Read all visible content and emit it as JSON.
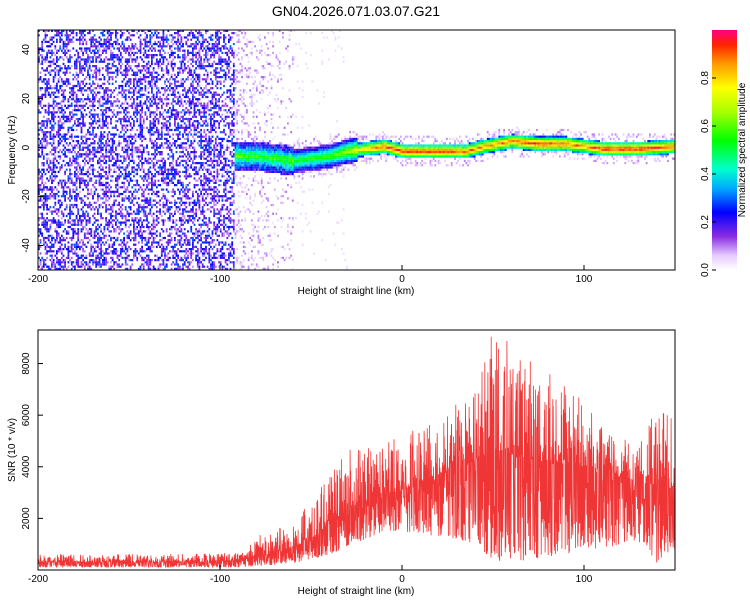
{
  "figure_title": "GN04.2026.071.03.07.G21",
  "chart_data": [
    {
      "type": "heatmap",
      "title": "GN04.2026.071.03.07.G21",
      "xlabel": "Height of straight line (km)",
      "ylabel": "Frequency (Hz)",
      "xlim": [
        -200,
        150
      ],
      "ylim": [
        -50,
        48
      ],
      "x_ticks": [
        -200,
        -100,
        0,
        100
      ],
      "y_ticks": [
        -40,
        -20,
        0,
        20,
        40
      ],
      "x_tick_labels": [
        "-200",
        "-100",
        "0",
        "100"
      ],
      "y_tick_labels": [
        "-40",
        "-20",
        "0",
        "20",
        "40"
      ],
      "colorbar": {
        "label": "Normalized spectral amplitude",
        "range": [
          0,
          1
        ],
        "ticks": [
          0.0,
          0.2,
          0.4,
          0.6,
          0.8
        ],
        "tick_labels": [
          "0.0",
          "0.2",
          "0.4",
          "0.6",
          "0.8"
        ]
      },
      "ridge": {
        "x": [
          -90,
          -80,
          -60,
          -40,
          -30,
          -20,
          -10,
          0,
          20,
          35,
          45,
          60,
          75,
          90,
          100,
          110,
          130,
          150
        ],
        "frequency": [
          -4,
          -4,
          -6,
          -4,
          -2,
          -1,
          0,
          -2,
          -2,
          -2,
          0,
          2,
          1,
          1,
          0,
          -1,
          -1,
          0
        ],
        "amplitude": [
          0.5,
          0.48,
          0.5,
          0.55,
          0.65,
          0.8,
          0.9,
          0.95,
          0.95,
          0.9,
          0.85,
          0.88,
          0.95,
          0.9,
          0.85,
          0.95,
          0.95,
          0.9
        ]
      },
      "noise_region": {
        "x_from": -200,
        "x_to": -60,
        "amplitude": [
          0.1,
          0.35
        ]
      }
    },
    {
      "type": "line",
      "xlabel": "Height of straight line (km)",
      "ylabel": "SNR (10 * v/v)",
      "xlim": [
        -200,
        150
      ],
      "ylim": [
        0,
        9300
      ],
      "x_ticks": [
        -200,
        -100,
        0,
        100
      ],
      "y_ticks": [
        2000,
        4000,
        6000,
        8000
      ],
      "x_tick_labels": [
        "-200",
        "-100",
        "0",
        "100"
      ],
      "y_tick_labels": [
        "2000",
        "4000",
        "6000",
        "8000"
      ],
      "series": [
        {
          "name": "SNR",
          "color": "#ef3535",
          "envelope": {
            "x": [
              -200,
              -170,
              -140,
              -110,
              -90,
              -80,
              -70,
              -60,
              -50,
              -40,
              -30,
              -20,
              -10,
              0,
              10,
              20,
              30,
              40,
              50,
              55,
              60,
              70,
              80,
              90,
              100,
              110,
              120,
              130,
              140,
              150
            ],
            "mean": [
              300,
              320,
              300,
              320,
              380,
              500,
              650,
              900,
              1200,
              1800,
              2300,
              2700,
              2900,
              3100,
              3400,
              3700,
              3900,
              4200,
              4500,
              4600,
              4500,
              4300,
              4200,
              4100,
              4000,
              3900,
              3600,
              3400,
              3300,
              3100
            ],
            "max": [
              600,
              650,
              600,
              650,
              700,
              1300,
              1600,
              1900,
              2800,
              3600,
              4700,
              4700,
              4900,
              5300,
              5800,
              6000,
              6600,
              7000,
              9300,
              9300,
              8500,
              8100,
              7800,
              7300,
              6600,
              5500,
              5100,
              4900,
              6300,
              6200
            ],
            "min": [
              100,
              100,
              100,
              100,
              100,
              150,
              200,
              250,
              400,
              600,
              900,
              1200,
              1500,
              1500,
              1400,
              1300,
              1200,
              1000,
              400,
              300,
              300,
              400,
              500,
              600,
              700,
              800,
              1000,
              1100,
              300,
              800
            ]
          }
        }
      ]
    }
  ]
}
